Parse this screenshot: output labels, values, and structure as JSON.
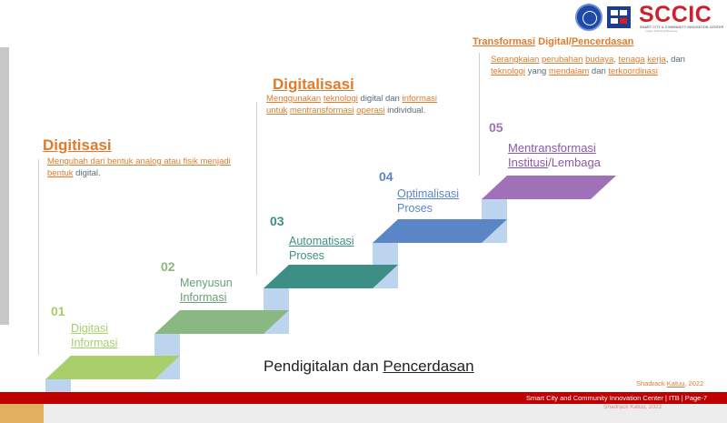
{
  "slide": {
    "caption_parts": [
      "Pendigitalan dan ",
      "Pencerdasan"
    ],
    "credit_name": "Shadrack ",
    "credit_underlined": "Katuu",
    "credit_year": ", 2022",
    "footer": "Smart City and Community Innovation Center  |  ITB  |  Page-7",
    "footer_ghost": "Shadrack Katuu, 2022"
  },
  "logo": {
    "text": "SCCIC",
    "subtitle": "SMART CITY & COMMUNITY INNOVATION CENTER",
    "tagline": "Institut Teknologi Bandung"
  },
  "concepts": {
    "digitisasi": {
      "title": "Digitisasi",
      "desc_line1": [
        "Mengubah",
        " dari",
        " bentuk",
        " analog",
        " atau",
        " fisik",
        " menjadi"
      ],
      "desc_line2_u": "bentuk",
      "desc_line2_plain": " digital."
    },
    "digitalisasi": {
      "title": "Digitalisasi",
      "line1_u": "Menggunakan",
      "line1_u2": "teknologi",
      "line1_plain": " digital dan ",
      "line1_u3": "informasi",
      "line2_u": "untuk",
      "line2_u2": "mentransformasi",
      "line2_u3": "operasi",
      "line2_plain": " individual."
    },
    "transformasi": {
      "title_u": "Transformasi",
      "title_plain": " Digital/",
      "title_u2": "Pencerdasan",
      "line1_u": "Serangkaian",
      "line1_u2": "perubahan",
      "line1_u3": "budaya",
      "line1_u4": "tenaga",
      "line1_u5": "kerja",
      "line1_plain": ", dan",
      "line2_u": "teknologi",
      "line2_plain": " yang ",
      "line2_u2": "mendalam",
      "line2_plain2": " dan ",
      "line2_u3": "terkoordinasi"
    }
  },
  "steps": [
    {
      "num": "01",
      "line1": "Digitasi",
      "line2": "Informasi",
      "color": "#a9cf6a"
    },
    {
      "num": "02",
      "line1": "Menyusun",
      "line2": "Informasi",
      "color": "#8ab882"
    },
    {
      "num": "03",
      "line1": "Automatisasi",
      "line2": "Proses",
      "color": "#3d8f85"
    },
    {
      "num": "04",
      "line1": "Optimalisasi",
      "line2": "Proses",
      "color": "#5a86c8"
    },
    {
      "num": "05",
      "line1": "Mentransformasi",
      "line2": "Institusi/Lembaga",
      "color": "#a070b8"
    }
  ],
  "colors": {
    "accent_orange": "#e07b2c",
    "footer_red": "#c00000",
    "step_front": "#bcd4ee"
  }
}
